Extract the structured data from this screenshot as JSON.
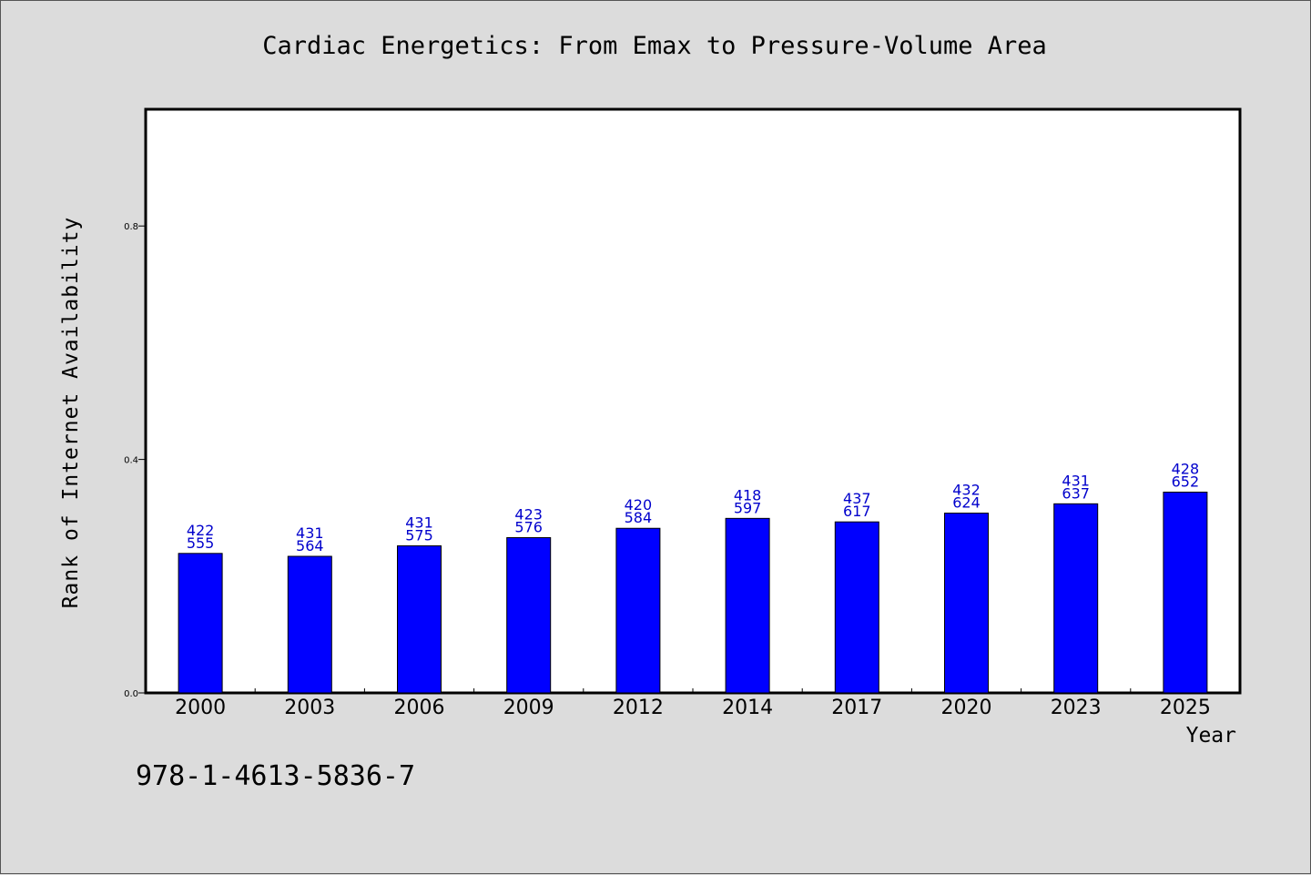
{
  "chart_data": {
    "type": "bar",
    "title": "Cardiac Energetics: From Emax to Pressure-Volume Area",
    "xlabel": "Year",
    "ylabel": "Rank of Internet Availability",
    "categories": [
      "2000",
      "2003",
      "2006",
      "2009",
      "2012",
      "2014",
      "2017",
      "2020",
      "2023",
      "2025"
    ],
    "values": [
      0.239,
      0.234,
      0.252,
      0.266,
      0.282,
      0.299,
      0.293,
      0.308,
      0.324,
      0.344
    ],
    "label_top": [
      "422",
      "431",
      "431",
      "423",
      "420",
      "418",
      "437",
      "432",
      "431",
      "428"
    ],
    "label_bottom": [
      "555",
      "564",
      "575",
      "576",
      "584",
      "597",
      "617",
      "624",
      "637",
      "652"
    ],
    "ylim": [
      0,
      1.0
    ],
    "yticks": [
      0.0,
      0.4,
      0.8
    ],
    "ytick_labels": [
      "0.0",
      "0.4",
      "0.8"
    ],
    "bar_color": "#0000ff",
    "label_color": "#0000cc",
    "grid": false,
    "footer_text": "978-1-4613-5836-7"
  }
}
